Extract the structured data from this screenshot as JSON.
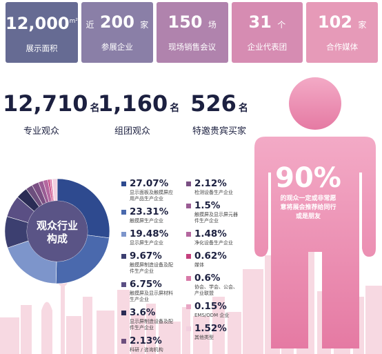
{
  "stats": [
    {
      "prefix": "",
      "value": "12,000",
      "unit": "m²",
      "label": "展示面积",
      "color": "#6b6f97"
    },
    {
      "prefix": "近",
      "value": "200",
      "unit": "家",
      "label": "参展企业",
      "color": "#8a7ea6"
    },
    {
      "prefix": "",
      "value": "150",
      "unit": "场",
      "label": "现场销售会议",
      "color": "#b484ae"
    },
    {
      "prefix": "",
      "value": "31",
      "unit": "个",
      "label": "企业代表团",
      "color": "#d88db3"
    },
    {
      "prefix": "",
      "value": "102",
      "unit": "家",
      "label": "合作媒体",
      "color": "#e79ab8"
    }
  ],
  "visitors": [
    {
      "value": "12,710",
      "unit": "名",
      "label": "专业观众"
    },
    {
      "value": "1,160",
      "unit": "名",
      "label": "组团观众"
    },
    {
      "value": "526",
      "unit": "名",
      "label": "特邀贵宾买家"
    }
  ],
  "highlight": {
    "percent": "90%",
    "line1": "的观众一定或非常愿",
    "line2": "意将展会推荐给同行",
    "line3": "或是朋友"
  },
  "donut": {
    "title_line1": "观众行业",
    "title_line2": "构成"
  },
  "chart_data": {
    "type": "pie",
    "title": "观众行业构成",
    "series": [
      {
        "name": "显示面板及触摸屏应用产品生产企业",
        "value": 27.07,
        "color": "#2e4a8f"
      },
      {
        "name": "触摸屏生产企业",
        "value": 23.31,
        "color": "#4a69ad"
      },
      {
        "name": "显示屏生产企业",
        "value": 19.48,
        "color": "#7d95cb"
      },
      {
        "name": "触摸屏制造设备及配件生产企业",
        "value": 9.67,
        "color": "#3c3f70"
      },
      {
        "name": "触摸屏及显示屏材料生产企业",
        "value": 6.75,
        "color": "#5a4f84"
      },
      {
        "name": "显示屏制造设备及配件生产企业",
        "value": 3.6,
        "color": "#2a2c55"
      },
      {
        "name": "科研/咨询机构",
        "value": 2.13,
        "color": "#6d4f7e"
      },
      {
        "name": "检测设备生产企业",
        "value": 2.12,
        "color": "#7a4f83"
      },
      {
        "name": "触摸屏及显示屏元器件生产企业",
        "value": 1.5,
        "color": "#9a5c94"
      },
      {
        "name": "净化设备生产企业",
        "value": 1.48,
        "color": "#b4679f"
      },
      {
        "name": "媒体",
        "value": 0.62,
        "color": "#c4407d"
      },
      {
        "name": "协会、学会、公会、产业联盟",
        "value": 0.6,
        "color": "#d87aa9"
      },
      {
        "name": "EMS/ODM 企业",
        "value": 0.15,
        "color": "#e8a6c4"
      },
      {
        "name": "其他类型",
        "value": 1.52,
        "color": "#f2cfdf"
      }
    ]
  },
  "legend_left": [
    {
      "percent": "27.07%",
      "desc": [
        "显示面板及触摸屏应",
        "用产品生产企业"
      ]
    },
    {
      "percent": "23.31%",
      "desc": [
        "触摸屏生产企业"
      ]
    },
    {
      "percent": "19.48%",
      "desc": [
        "显示屏生产企业"
      ]
    },
    {
      "percent": "9.67%",
      "desc": [
        "触摸屏制造设备及配",
        "件生产企业"
      ]
    },
    {
      "percent": "6.75%",
      "desc": [
        "触摸屏及显示屏材料",
        "生产企业"
      ]
    },
    {
      "percent": "3.6%",
      "desc": [
        "显示屏制造设备及配",
        "件生产企业"
      ]
    },
    {
      "percent": "2.13%",
      "desc": [
        "科研 / 咨询机构"
      ]
    }
  ],
  "legend_right": [
    {
      "percent": "2.12%",
      "desc": [
        "检测设备生产企业"
      ]
    },
    {
      "percent": "1.5%",
      "desc": [
        "触摸屏及显示屏元器",
        "件生产企业"
      ]
    },
    {
      "percent": "1.48%",
      "desc": [
        "净化设备生产企业"
      ]
    },
    {
      "percent": "0.62%",
      "desc": [
        "媒体"
      ]
    },
    {
      "percent": "0.6%",
      "desc": [
        "协会、学会、公会、",
        "产业联盟"
      ]
    },
    {
      "percent": "0.15%",
      "desc": [
        "EMS/ODM 企业"
      ]
    },
    {
      "percent": "1.52%",
      "desc": [
        "其他类型"
      ]
    }
  ],
  "colors": {
    "person_top": "#f0a0bf",
    "person_bottom": "#e77ea6",
    "skyline": "#f4cdd8"
  }
}
